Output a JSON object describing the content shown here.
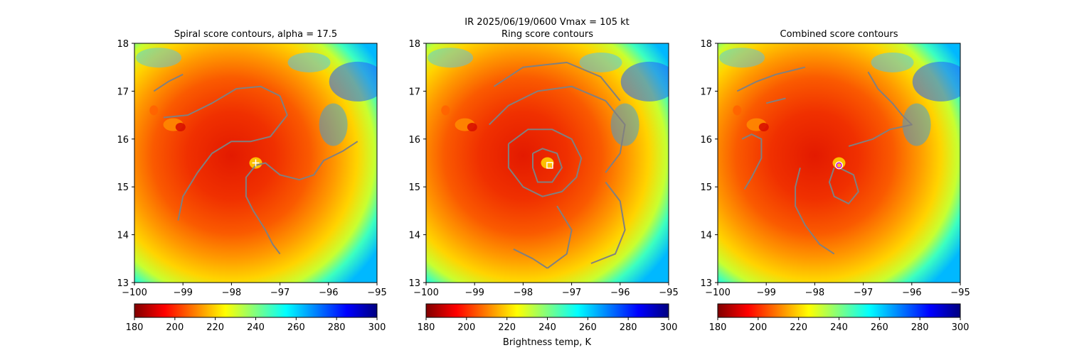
{
  "figure": {
    "suptitle_line1": "IR  2025/06/19/0600    Vmax = 105 kt",
    "colorbar_label": "Brightness temp, K"
  },
  "colorbar": {
    "min": 180,
    "max": 300,
    "ticks": [
      180,
      200,
      220,
      240,
      260,
      280,
      300
    ],
    "colormap": "jet"
  },
  "chart_data": [
    {
      "type": "heatmap",
      "title": "Spiral score contours, alpha = 17.5",
      "xlim": [
        -100,
        -95
      ],
      "ylim": [
        13,
        18
      ],
      "xticks": [
        -100,
        -99,
        -98,
        -97,
        -96,
        -95
      ],
      "yticks": [
        13,
        14,
        15,
        16,
        17,
        18
      ],
      "center_marker": {
        "symbol": "plus",
        "lon": -97.5,
        "lat": 15.5,
        "color": "#ffffff"
      },
      "contour_color": "#808080",
      "contours": [
        [
          [
            -99.6,
            17.0
          ],
          [
            -99.3,
            17.2
          ],
          [
            -99.0,
            17.35
          ]
        ],
        [
          [
            -99.4,
            16.45
          ],
          [
            -98.9,
            16.5
          ],
          [
            -98.4,
            16.75
          ],
          [
            -97.9,
            17.05
          ],
          [
            -97.4,
            17.1
          ],
          [
            -97.0,
            16.9
          ],
          [
            -96.85,
            16.5
          ],
          [
            -97.2,
            16.05
          ],
          [
            -97.6,
            15.95
          ],
          [
            -98.0,
            15.95
          ],
          [
            -98.4,
            15.7
          ],
          [
            -98.7,
            15.3
          ],
          [
            -99.0,
            14.8
          ],
          [
            -99.1,
            14.3
          ]
        ],
        [
          [
            -95.4,
            15.95
          ],
          [
            -95.7,
            15.75
          ],
          [
            -96.1,
            15.55
          ],
          [
            -96.3,
            15.25
          ],
          [
            -96.6,
            15.15
          ],
          [
            -97.0,
            15.25
          ],
          [
            -97.3,
            15.5
          ],
          [
            -97.5,
            15.45
          ],
          [
            -97.7,
            15.2
          ],
          [
            -97.7,
            14.8
          ],
          [
            -97.55,
            14.5
          ],
          [
            -97.3,
            14.1
          ],
          [
            -97.15,
            13.8
          ],
          [
            -97.0,
            13.6
          ]
        ]
      ]
    },
    {
      "type": "heatmap",
      "title": "Ring score contours",
      "xlim": [
        -100,
        -95
      ],
      "ylim": [
        13,
        18
      ],
      "xticks": [
        -100,
        -99,
        -98,
        -97,
        -96,
        -95
      ],
      "yticks": [
        13,
        14,
        15,
        16,
        17,
        18
      ],
      "center_marker": {
        "symbol": "square",
        "lon": -97.45,
        "lat": 15.45,
        "color": "#ffffff"
      },
      "contour_color": "#808080",
      "contours": [
        [
          [
            -98.7,
            16.3
          ],
          [
            -98.3,
            16.7
          ],
          [
            -97.7,
            17.0
          ],
          [
            -97.0,
            17.1
          ],
          [
            -96.3,
            16.8
          ],
          [
            -95.9,
            16.3
          ],
          [
            -96.0,
            15.7
          ],
          [
            -96.3,
            15.3
          ]
        ],
        [
          [
            -98.6,
            17.1
          ],
          [
            -98.0,
            17.5
          ],
          [
            -97.1,
            17.6
          ],
          [
            -96.4,
            17.3
          ],
          [
            -96.0,
            16.8
          ]
        ],
        [
          [
            -98.3,
            15.9
          ],
          [
            -97.9,
            16.2
          ],
          [
            -97.4,
            16.2
          ],
          [
            -97.0,
            16.0
          ],
          [
            -96.8,
            15.6
          ],
          [
            -96.9,
            15.2
          ],
          [
            -97.2,
            14.9
          ],
          [
            -97.6,
            14.8
          ],
          [
            -98.0,
            15.0
          ],
          [
            -98.3,
            15.4
          ],
          [
            -98.3,
            15.9
          ]
        ],
        [
          [
            -97.8,
            15.7
          ],
          [
            -97.6,
            15.8
          ],
          [
            -97.3,
            15.7
          ],
          [
            -97.2,
            15.4
          ],
          [
            -97.4,
            15.1
          ],
          [
            -97.7,
            15.1
          ],
          [
            -97.8,
            15.4
          ],
          [
            -97.8,
            15.7
          ]
        ],
        [
          [
            -96.3,
            15.1
          ],
          [
            -96.0,
            14.7
          ],
          [
            -95.9,
            14.1
          ],
          [
            -96.1,
            13.6
          ],
          [
            -96.6,
            13.4
          ]
        ],
        [
          [
            -97.3,
            14.6
          ],
          [
            -97.0,
            14.1
          ],
          [
            -97.1,
            13.6
          ],
          [
            -97.5,
            13.3
          ]
        ],
        [
          [
            -98.2,
            13.7
          ],
          [
            -97.8,
            13.5
          ],
          [
            -97.5,
            13.3
          ]
        ]
      ]
    },
    {
      "type": "heatmap",
      "title": "Combined score contours",
      "xlim": [
        -100,
        -95
      ],
      "ylim": [
        13,
        18
      ],
      "xticks": [
        -100,
        -99,
        -98,
        -97,
        -96,
        -95
      ],
      "yticks": [
        13,
        14,
        15,
        16,
        17,
        18
      ],
      "center_marker": {
        "symbol": "circle",
        "lon": -97.5,
        "lat": 15.45,
        "color": "#cc00cc"
      },
      "contour_color": "#808080",
      "contours": [
        [
          [
            -99.6,
            17.0
          ],
          [
            -99.2,
            17.2
          ],
          [
            -98.8,
            17.35
          ],
          [
            -98.4,
            17.45
          ],
          [
            -98.2,
            17.5
          ]
        ],
        [
          [
            -99.0,
            16.75
          ],
          [
            -98.8,
            16.8
          ],
          [
            -98.6,
            16.85
          ]
        ],
        [
          [
            -96.9,
            17.4
          ],
          [
            -96.7,
            17.05
          ],
          [
            -96.4,
            16.75
          ],
          [
            -96.2,
            16.5
          ],
          [
            -96.0,
            16.3
          ],
          [
            -96.45,
            16.2
          ],
          [
            -96.8,
            16.0
          ],
          [
            -97.3,
            15.85
          ]
        ],
        [
          [
            -99.5,
            16.0
          ],
          [
            -99.3,
            16.1
          ],
          [
            -99.1,
            16.0
          ],
          [
            -99.1,
            15.6
          ],
          [
            -99.3,
            15.2
          ],
          [
            -99.45,
            14.95
          ]
        ],
        [
          [
            -98.3,
            15.4
          ],
          [
            -98.4,
            15.0
          ],
          [
            -98.4,
            14.6
          ],
          [
            -98.2,
            14.2
          ],
          [
            -97.9,
            13.8
          ],
          [
            -97.6,
            13.6
          ]
        ],
        [
          [
            -97.5,
            15.4
          ],
          [
            -97.2,
            15.25
          ],
          [
            -97.1,
            14.9
          ],
          [
            -97.3,
            14.65
          ],
          [
            -97.6,
            14.8
          ],
          [
            -97.7,
            15.1
          ],
          [
            -97.6,
            15.4
          ]
        ]
      ]
    }
  ]
}
